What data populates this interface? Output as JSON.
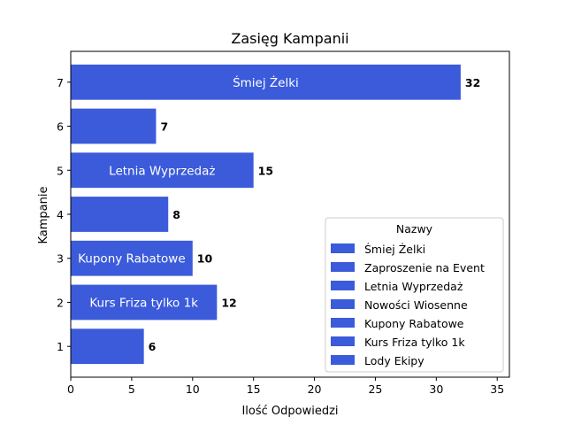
{
  "chart_data": {
    "type": "bar",
    "orientation": "horizontal",
    "title": "Zasięg Kampanii",
    "xlabel": "Ilość Odpowiedzi",
    "ylabel": "Kampanie",
    "xlim": [
      0,
      36
    ],
    "ylim": [
      0.3,
      7.7
    ],
    "xticks": [
      0,
      5,
      10,
      15,
      20,
      25,
      30,
      35
    ],
    "categories": [
      "1",
      "2",
      "3",
      "4",
      "5",
      "6",
      "7"
    ],
    "values": [
      6,
      12,
      10,
      8,
      15,
      7,
      32
    ],
    "bar_labels": [
      "",
      "Kurs Friza tylko 1k",
      "Kupony Rabatowe",
      "",
      "Letnia Wyprzedaż",
      "",
      "Śmiej Żelki"
    ],
    "bar_color": "#3b5bdb",
    "grid": false,
    "legend": {
      "title": "Nazwy",
      "placement": "lower-right",
      "entries": [
        "Śmiej Żelki",
        "Zaproszenie na Event",
        "Letnia Wyprzedaż",
        "Nowości Wiosenne",
        "Kupony Rabatowe",
        "Kurs Friza tylko 1k",
        "Lody Ekipy"
      ]
    }
  }
}
